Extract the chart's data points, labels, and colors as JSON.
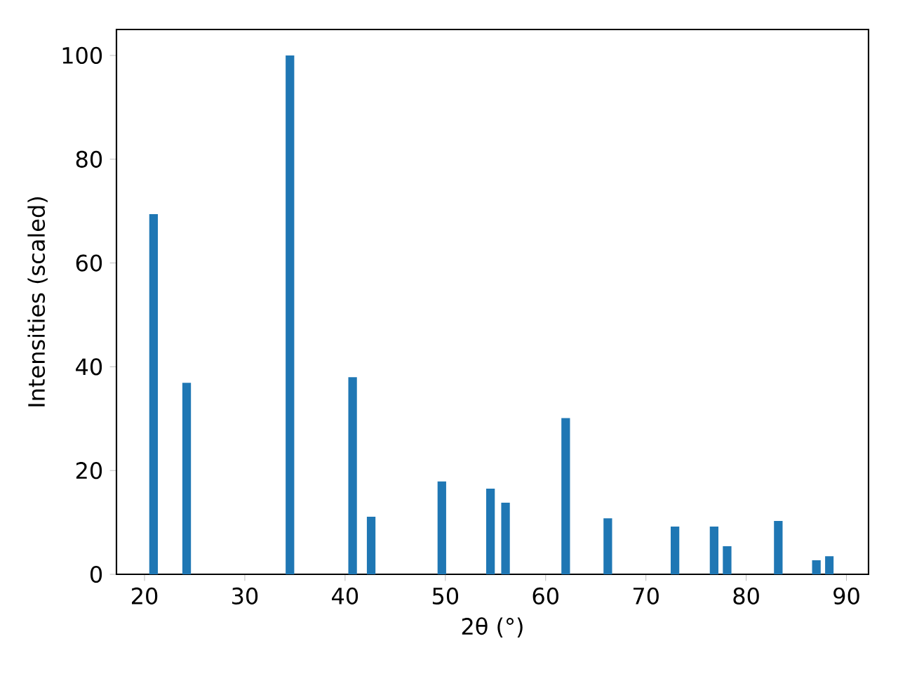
{
  "chart_data": {
    "type": "bar",
    "xlabel": "2θ (°)",
    "ylabel": "Intensities (scaled)",
    "x": [
      20.9,
      24.2,
      34.5,
      40.75,
      42.6,
      49.65,
      54.5,
      56.0,
      62.0,
      66.2,
      72.9,
      76.8,
      78.1,
      83.2,
      87.0,
      88.3
    ],
    "values": [
      69.4,
      36.9,
      100,
      38.0,
      11.1,
      17.9,
      16.5,
      13.8,
      30.1,
      10.8,
      9.2,
      9.2,
      5.4,
      10.3,
      2.7,
      3.5
    ],
    "color": "#1f77b4",
    "xlim": [
      17.2,
      92.2
    ],
    "ylim": [
      0,
      105
    ],
    "xticks": [
      20,
      30,
      40,
      50,
      60,
      70,
      80,
      90
    ],
    "yticks": [
      0,
      20,
      40,
      60,
      80,
      100
    ]
  }
}
